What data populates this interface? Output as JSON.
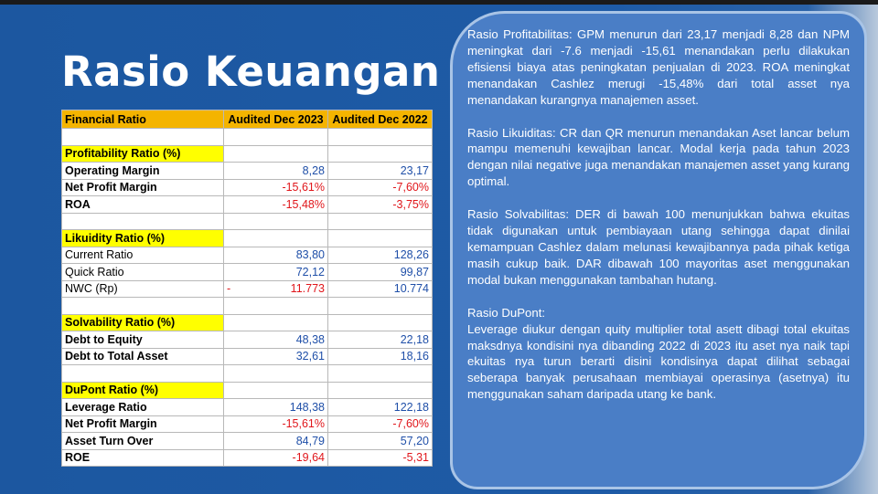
{
  "title": "Rasio Keuangan",
  "table": {
    "header": [
      "Financial Ratio",
      "Audited Dec 2023",
      "Audited Dec 2022"
    ],
    "rows": [
      [],
      [
        "Profitability Ratio (%)"
      ],
      [
        "Operating Margin",
        "8,28",
        "23,17"
      ],
      [
        "Net Profit Margin",
        "-15,61%",
        "-7,60%"
      ],
      [
        "ROA",
        "-15,48%",
        "-3,75%"
      ],
      [],
      [
        "Likuidity Ratio (%)"
      ],
      [
        "Current Ratio",
        "83,80",
        "128,26"
      ],
      [
        "Quick Ratio",
        "72,12",
        "99,87"
      ],
      [
        "NWC (Rp)",
        "- 11.773",
        "10.774"
      ],
      [],
      [
        "Solvability Ratio (%)"
      ],
      [
        "Debt to Equity",
        "48,38",
        "22,18"
      ],
      [
        "Debt to Total Asset",
        "32,61",
        "18,16"
      ],
      [],
      [
        "DuPont Ratio (%)"
      ],
      [
        "Leverage Ratio",
        "148,38",
        "122,18"
      ],
      [
        "Net Profit Margin",
        "-15,61%",
        "-7,60%"
      ],
      [
        "Asset Turn Over",
        "84,79",
        "57,20"
      ],
      [
        "ROE",
        "-19,64",
        "-5,31"
      ]
    ]
  },
  "panel": {
    "paragraphs": [
      "Rasio Profitabilitas: GPM menurun dari 23,17 menjadi 8,28 dan NPM meningkat dari -7.6 menjadi -15,61 menandakan perlu dilakukan efisiensi biaya atas peningkatan penjualan di 2023. ROA meningkat menandakan Cashlez  merugi -15,48% dari total asset nya menandakan kurangnya manajemen asset.",
      "Rasio Likuiditas: CR dan QR menurun menandakan Aset lancar belum mampu memenuhi kewajiban lancar. Modal kerja pada tahun 2023 dengan nilai negative juga menandakan manajemen asset yang kurang optimal.",
      "Rasio Solvabilitas: DER di bawah 100 menunjukkan bahwa ekuitas tidak digunakan untuk pembiayaan utang sehingga dapat dinilai kemampuan Cashlez dalam melunasi kewajibannya pada pihak ketiga masih cukup baik. DAR dibawah 100 mayoritas aset menggunakan modal bukan menggunakan tambahan hutang."
    ],
    "dupont_heading": "Rasio DuPont:",
    "dupont_text": "Leverage diukur dengan quity multiplier total asett dibagi total ekuitas maksdnya kondisini nya dibanding 2022 di 2023 itu aset nya naik tapi ekuitas nya turun berarti disini kondisinya dapat dilihat sebagai seberapa banyak perusahaan membiayai operasinya (asetnya) itu menggunakan saham daripada utang ke bank."
  }
}
